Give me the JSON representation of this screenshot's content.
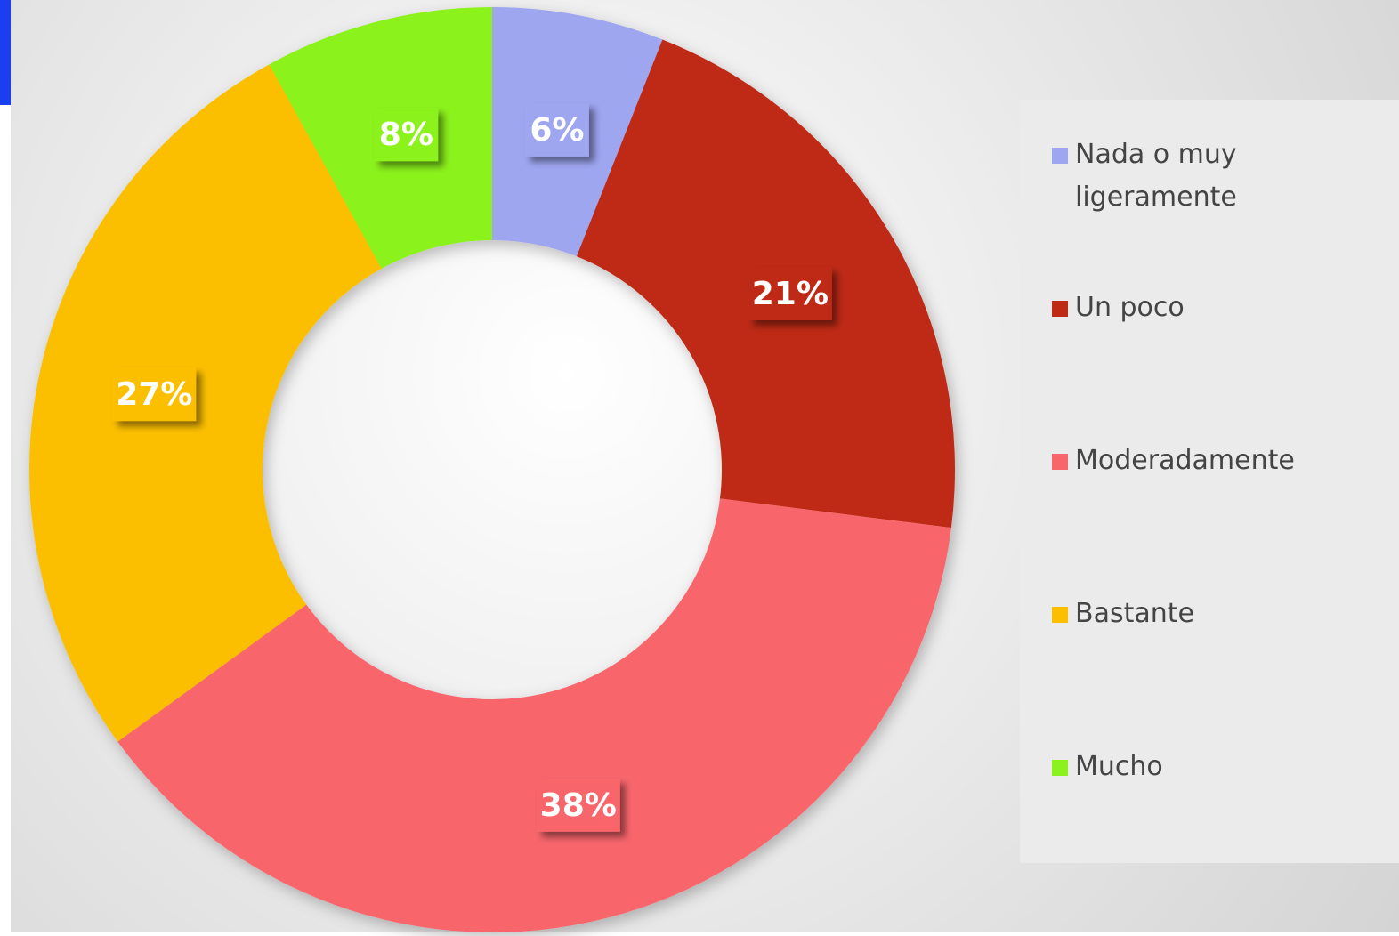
{
  "chart_data": {
    "type": "donut",
    "categories": [
      "Nada o muy ligeramente",
      "Un poco",
      "Moderadamente",
      "Bastante",
      "Mucho"
    ],
    "values": [
      6,
      21,
      38,
      27,
      8
    ],
    "value_labels": [
      "6%",
      "21%",
      "38%",
      "27%",
      "8%"
    ],
    "colors": [
      "#9ea6f0",
      "#be2a14",
      "#f8666c",
      "#fcbf00",
      "#8cf21e"
    ],
    "legend": "right"
  }
}
